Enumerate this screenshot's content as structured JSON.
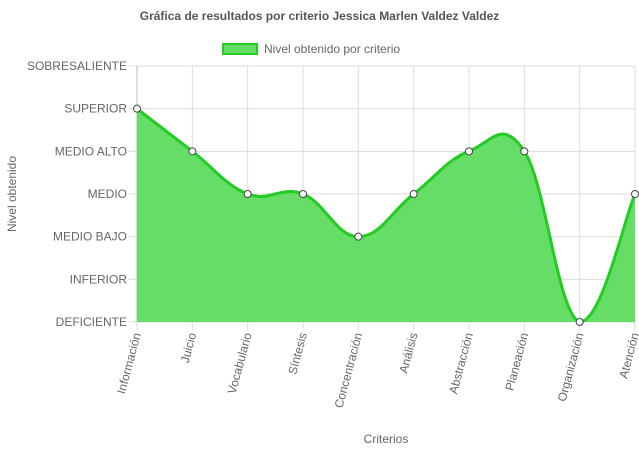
{
  "chart_data": {
    "type": "area",
    "title": "Gráfica de resultados por criterio Jessica Marlen Valdez Valdez",
    "xlabel": "Criterios",
    "ylabel": "Nivel obtenido",
    "categories": [
      "Información",
      "Juicio",
      "Vocabulario",
      "Síntesis",
      "Concentración",
      "Análisis",
      "Abstracción",
      "Planeación",
      "Organización",
      "Atención"
    ],
    "y_levels": [
      "DEFICIENTE",
      "INFERIOR",
      "MEDIO BAJO",
      "MEDIO",
      "MEDIO ALTO",
      "SUPERIOR",
      "SOBRESALIENTE"
    ],
    "series": [
      {
        "name": "Nivel obtenido por criterio",
        "values": [
          5,
          4,
          3,
          3,
          2,
          3,
          4,
          4,
          0,
          3
        ]
      }
    ],
    "ylim": [
      0,
      6
    ],
    "grid": true,
    "legend": "top",
    "colors": {
      "fill": "#66dd66",
      "line": "#22cc22",
      "point": "#ffffff",
      "point_border": "#444444",
      "grid": "#dddddd"
    }
  }
}
